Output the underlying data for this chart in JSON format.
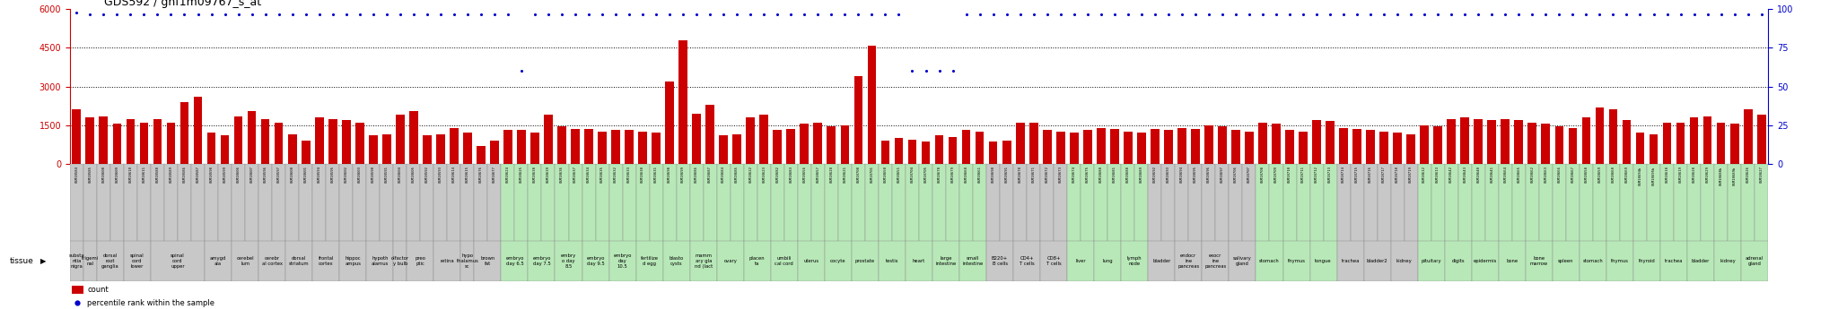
{
  "title": "GDS592 / gnf1m09767_s_at",
  "samples": [
    [
      "GSM18584",
      2100,
      98,
      "substa\nntia\nnigra",
      "#c8c8c8"
    ],
    [
      "GSM18585",
      1800,
      97,
      "trigemi\nnal",
      "#c8c8c8"
    ],
    [
      "GSM18608",
      1850,
      97,
      "dorsal\nroot\nganglia",
      "#c8c8c8"
    ],
    [
      "GSM18609",
      1550,
      97,
      "dorsal\nroot\nganglia",
      "#c8c8c8"
    ],
    [
      "GSM18610",
      1750,
      97,
      "spinal\ncord\nlower",
      "#c8c8c8"
    ],
    [
      "GSM18611",
      1600,
      97,
      "spinal\ncord\nlower",
      "#c8c8c8"
    ],
    [
      "GSM18588",
      1750,
      97,
      "spinal\ncord\nupper",
      "#c8c8c8"
    ],
    [
      "GSM18589",
      1600,
      97,
      "spinal\ncord\nupper",
      "#c8c8c8"
    ],
    [
      "GSM18586",
      2400,
      97,
      "spinal\ncord\nupper",
      "#c8c8c8"
    ],
    [
      "GSM18587",
      2600,
      97,
      "spinal\ncord\nupper",
      "#c8c8c8"
    ],
    [
      "GSM18598",
      1200,
      97,
      "amygd\nala",
      "#c8c8c8"
    ],
    [
      "GSM18599",
      1100,
      97,
      "amygd\nala",
      "#c8c8c8"
    ],
    [
      "GSM18606",
      1850,
      97,
      "cerebel\nlum",
      "#c8c8c8"
    ],
    [
      "GSM18607",
      2050,
      97,
      "cerebel\nlum",
      "#c8c8c8"
    ],
    [
      "GSM18596",
      1750,
      97,
      "cerebr\nal cortex",
      "#c8c8c8"
    ],
    [
      "GSM18597",
      1600,
      97,
      "cerebr\nal cortex",
      "#c8c8c8"
    ],
    [
      "GSM18600",
      1150,
      97,
      "dorsal\nstriatum",
      "#c8c8c8"
    ],
    [
      "GSM18601",
      900,
      97,
      "dorsal\nstriatum",
      "#c8c8c8"
    ],
    [
      "GSM18594",
      1800,
      97,
      "frontal\ncortex",
      "#c8c8c8"
    ],
    [
      "GSM18595",
      1750,
      97,
      "frontal\ncortex",
      "#c8c8c8"
    ],
    [
      "GSM18602",
      1700,
      97,
      "hippoc\nampus",
      "#c8c8c8"
    ],
    [
      "GSM18603",
      1600,
      97,
      "hippoc\nampus",
      "#c8c8c8"
    ],
    [
      "GSM18590",
      1100,
      97,
      "hypoth\nalamus",
      "#c8c8c8"
    ],
    [
      "GSM18591",
      1150,
      97,
      "hypoth\nalamus",
      "#c8c8c8"
    ],
    [
      "GSM18604",
      1900,
      97,
      "olfactor\ny bulb",
      "#c8c8c8"
    ],
    [
      "GSM18605",
      2050,
      97,
      "preo\nptic",
      "#c8c8c8"
    ],
    [
      "GSM18592",
      1100,
      97,
      "preo\nptic",
      "#c8c8c8"
    ],
    [
      "GSM18593",
      1150,
      97,
      "retina",
      "#c8c8c8"
    ],
    [
      "GSM18614",
      1400,
      97,
      "retina",
      "#c8c8c8"
    ],
    [
      "GSM18615",
      1200,
      97,
      "hypo\nthalamus\nsc",
      "#c8c8c8"
    ],
    [
      "GSM18676",
      700,
      97,
      "brown\nfat",
      "#c8c8c8"
    ],
    [
      "GSM18677",
      900,
      97,
      "brown\nfat",
      "#c8c8c8"
    ],
    [
      "GSM18624",
      1300,
      97,
      "embryo\nday 6.5",
      "#b8e8b8"
    ],
    [
      "GSM18625",
      1300,
      60,
      "embryo\nday 6.5",
      "#b8e8b8"
    ],
    [
      "GSM18638",
      1200,
      97,
      "embryo\nday 7.5",
      "#b8e8b8"
    ],
    [
      "GSM18639",
      1900,
      97,
      "embryo\nday 7.5",
      "#b8e8b8"
    ],
    [
      "GSM18636",
      1450,
      97,
      "embry\no day\n8.5",
      "#b8e8b8"
    ],
    [
      "GSM18637",
      1350,
      97,
      "embry\no day\n8.5",
      "#b8e8b8"
    ],
    [
      "GSM18634",
      1350,
      97,
      "embryo\nday 9.5",
      "#b8e8b8"
    ],
    [
      "GSM18635",
      1250,
      97,
      "embryo\nday 9.5",
      "#b8e8b8"
    ],
    [
      "GSM18632",
      1300,
      97,
      "embryo\nday\n10.5",
      "#b8e8b8"
    ],
    [
      "GSM18633",
      1300,
      97,
      "embryo\nday\n10.5",
      "#b8e8b8"
    ],
    [
      "GSM18630",
      1250,
      97,
      "fertilize\nd egg",
      "#b8e8b8"
    ],
    [
      "GSM18631",
      1200,
      97,
      "fertilize\nd egg",
      "#b8e8b8"
    ],
    [
      "GSM18698",
      3200,
      97,
      "blasto\ncysts",
      "#b8e8b8"
    ],
    [
      "GSM18699",
      4800,
      97,
      "blasto\ncysts",
      "#b8e8b8"
    ],
    [
      "GSM18686",
      1950,
      97,
      "mamm\nary gla\nnd (lact",
      "#b8e8b8"
    ],
    [
      "GSM18687",
      2300,
      97,
      "mamm\nary gla\nnd (lact",
      "#b8e8b8"
    ],
    [
      "GSM18684",
      1100,
      97,
      "ovary",
      "#b8e8b8"
    ],
    [
      "GSM18685",
      1150,
      97,
      "ovary",
      "#b8e8b8"
    ],
    [
      "GSM18622",
      1800,
      97,
      "placen\nta",
      "#b8e8b8"
    ],
    [
      "GSM18623",
      1900,
      97,
      "placen\nta",
      "#b8e8b8"
    ],
    [
      "GSM18682",
      1300,
      97,
      "umbili\ncal cord",
      "#b8e8b8"
    ],
    [
      "GSM18683",
      1350,
      97,
      "umbili\ncal cord",
      "#b8e8b8"
    ],
    [
      "GSM18656",
      1550,
      97,
      "uterus",
      "#b8e8b8"
    ],
    [
      "GSM18657",
      1600,
      97,
      "uterus",
      "#b8e8b8"
    ],
    [
      "GSM18620",
      1450,
      97,
      "oocyte",
      "#b8e8b8"
    ],
    [
      "GSM18621",
      1500,
      97,
      "oocyte",
      "#b8e8b8"
    ],
    [
      "GSM18700",
      3400,
      97,
      "prostate",
      "#b8e8b8"
    ],
    [
      "GSM18701",
      4600,
      97,
      "prostate",
      "#b8e8b8"
    ],
    [
      "GSM18650",
      900,
      97,
      "testis",
      "#b8e8b8"
    ],
    [
      "GSM18651",
      1000,
      97,
      "testis",
      "#b8e8b8"
    ],
    [
      "GSM18704",
      950,
      60,
      "heart",
      "#b8e8b8"
    ],
    [
      "GSM18705",
      850,
      60,
      "heart",
      "#b8e8b8"
    ],
    [
      "GSM18678",
      1100,
      60,
      "large\nintestine",
      "#b8e8b8"
    ],
    [
      "GSM18679",
      1050,
      60,
      "large\nintestine",
      "#b8e8b8"
    ],
    [
      "GSM18660",
      1300,
      97,
      "small\nintestine",
      "#b8e8b8"
    ],
    [
      "GSM18661",
      1250,
      97,
      "small\nintestine",
      "#b8e8b8"
    ],
    [
      "GSM18690",
      850,
      97,
      "B220+\nB cells",
      "#c8c8c8"
    ],
    [
      "GSM18691",
      900,
      97,
      "B220+\nB cells",
      "#c8c8c8"
    ],
    [
      "GSM18670",
      1600,
      97,
      "CD4+\nT cells",
      "#c8c8c8"
    ],
    [
      "GSM18671",
      1600,
      97,
      "CD4+\nT cells",
      "#c8c8c8"
    ],
    [
      "GSM18672",
      1300,
      97,
      "CD8+\nT cells",
      "#c8c8c8"
    ],
    [
      "GSM18673",
      1250,
      97,
      "CD8+\nT cells",
      "#c8c8c8"
    ],
    [
      "GSM18674",
      1200,
      97,
      "liver",
      "#b8e8b8"
    ],
    [
      "GSM18675",
      1300,
      97,
      "liver",
      "#b8e8b8"
    ],
    [
      "GSM18680",
      1400,
      97,
      "lung",
      "#b8e8b8"
    ],
    [
      "GSM18681",
      1350,
      97,
      "lung",
      "#b8e8b8"
    ],
    [
      "GSM18688",
      1250,
      97,
      "lymph\nnode",
      "#b8e8b8"
    ],
    [
      "GSM18689",
      1200,
      97,
      "lymph\nnode",
      "#b8e8b8"
    ],
    [
      "GSM18692",
      1350,
      97,
      "bladder",
      "#c8c8c8"
    ],
    [
      "GSM18693",
      1300,
      97,
      "bladder",
      "#c8c8c8"
    ],
    [
      "GSM18694",
      1400,
      97,
      "endocr\nine\npancreas",
      "#c8c8c8"
    ],
    [
      "GSM18695",
      1350,
      97,
      "endocr\nine\npancreas",
      "#c8c8c8"
    ],
    [
      "GSM18696",
      1500,
      97,
      "exocr\nine\npancreas",
      "#c8c8c8"
    ],
    [
      "GSM18697",
      1450,
      97,
      "exocr\nine\npancreas",
      "#c8c8c8"
    ],
    [
      "GSM18706",
      1300,
      97,
      "salivary\ngland",
      "#c8c8c8"
    ],
    [
      "GSM18707",
      1250,
      97,
      "salivary\ngland",
      "#c8c8c8"
    ],
    [
      "GSM18708",
      1600,
      97,
      "stomach",
      "#b8e8b8"
    ],
    [
      "GSM18709",
      1550,
      97,
      "stomach",
      "#b8e8b8"
    ],
    [
      "GSM18710",
      1300,
      97,
      "thymus",
      "#b8e8b8"
    ],
    [
      "GSM18711",
      1250,
      97,
      "thymus",
      "#b8e8b8"
    ],
    [
      "GSM18712",
      1700,
      97,
      "tongue",
      "#b8e8b8"
    ],
    [
      "GSM18713",
      1650,
      97,
      "tongue",
      "#b8e8b8"
    ],
    [
      "GSM18714",
      1400,
      97,
      "trachea",
      "#c8c8c8"
    ],
    [
      "GSM18715",
      1350,
      97,
      "trachea",
      "#c8c8c8"
    ],
    [
      "GSM18716",
      1300,
      97,
      "bladder2",
      "#c8c8c8"
    ],
    [
      "GSM18717",
      1250,
      97,
      "bladder2",
      "#c8c8c8"
    ],
    [
      "GSM18718",
      1200,
      97,
      "kidney",
      "#c8c8c8"
    ],
    [
      "GSM18719",
      1150,
      97,
      "kidney",
      "#c8c8c8"
    ],
    [
      "GSM18612",
      1500,
      97,
      "pituitary",
      "#b8e8b8"
    ],
    [
      "GSM18613",
      1450,
      97,
      "pituitary",
      "#b8e8b8"
    ],
    [
      "GSM18642",
      1750,
      97,
      "digits",
      "#b8e8b8"
    ],
    [
      "GSM18643",
      1800,
      97,
      "digits",
      "#b8e8b8"
    ],
    [
      "GSM18640",
      1750,
      97,
      "epidermis",
      "#b8e8b8"
    ],
    [
      "GSM18641",
      1700,
      97,
      "epidermis",
      "#b8e8b8"
    ],
    [
      "GSM18664",
      1750,
      97,
      "bone",
      "#b8e8b8"
    ],
    [
      "GSM18665",
      1700,
      97,
      "bone",
      "#b8e8b8"
    ],
    [
      "GSM18662",
      1600,
      97,
      "bone\nmarrow",
      "#b8e8b8"
    ],
    [
      "GSM18663",
      1550,
      97,
      "bone\nmarrow",
      "#b8e8b8"
    ],
    [
      "GSM18666",
      1450,
      97,
      "spleen",
      "#b8e8b8"
    ],
    [
      "GSM18667",
      1400,
      97,
      "spleen",
      "#b8e8b8"
    ],
    [
      "GSM18658",
      1800,
      97,
      "stomach",
      "#b8e8b8"
    ],
    [
      "GSM18659",
      2200,
      97,
      "stomach",
      "#b8e8b8"
    ],
    [
      "GSM18668",
      2100,
      97,
      "thymus",
      "#b8e8b8"
    ],
    [
      "GSM18669",
      1700,
      97,
      "thymus",
      "#b8e8b8"
    ],
    [
      "GSM18694b",
      1200,
      97,
      "thyroid",
      "#b8e8b8"
    ],
    [
      "GSM18695b",
      1150,
      97,
      "thyroid",
      "#b8e8b8"
    ],
    [
      "GSM18618",
      1600,
      97,
      "trachea",
      "#b8e8b8"
    ],
    [
      "GSM18619",
      1600,
      97,
      "trachea",
      "#b8e8b8"
    ],
    [
      "GSM18628",
      1800,
      97,
      "bladder",
      "#b8e8b8"
    ],
    [
      "GSM18629",
      1850,
      97,
      "bladder",
      "#b8e8b8"
    ],
    [
      "GSM18688b",
      1600,
      97,
      "kidney",
      "#b8e8b8"
    ],
    [
      "GSM18689b",
      1550,
      97,
      "kidney",
      "#b8e8b8"
    ],
    [
      "GSM18626",
      2100,
      97,
      "adrenal\ngland",
      "#b8e8b8"
    ],
    [
      "GSM18627",
      1900,
      97,
      "adrenal\ngland",
      "#b8e8b8"
    ]
  ],
  "ylim_left": [
    0,
    6000
  ],
  "ylim_right": [
    0,
    100
  ],
  "yticks_left": [
    0,
    1500,
    3000,
    4500,
    6000
  ],
  "yticks_right": [
    0,
    25,
    50,
    75,
    100
  ],
  "hlines": [
    1500,
    3000,
    4500
  ],
  "bar_color": "#cc0000",
  "dot_color": "#0000cc",
  "title_fontsize": 9
}
